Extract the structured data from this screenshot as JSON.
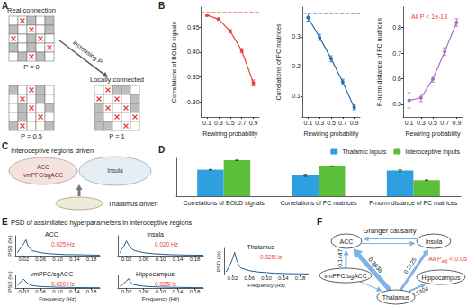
{
  "panel_labels": [
    "A",
    "B",
    "C",
    "D",
    "E",
    "F"
  ],
  "diagram_A": {
    "grids": [
      {
        "title": "Real connection",
        "caption": "P = 0",
        "gray": [
          2,
          4,
          5,
          9,
          12,
          15,
          17,
          21,
          23
        ],
        "marked": [
          1,
          7,
          10,
          13,
          19,
          22
        ]
      },
      {
        "caption": "P = 0.5",
        "gray": [
          0,
          3,
          8,
          11,
          14,
          16,
          20,
          24
        ],
        "marked": [
          2,
          6,
          12,
          18,
          21
        ]
      },
      {
        "title": "Locally connected",
        "caption": "P = 1",
        "gray": [
          2,
          3,
          9,
          10,
          14,
          15,
          20,
          21
        ],
        "marked": [
          1,
          5,
          7,
          11,
          13,
          17,
          19,
          23
        ]
      }
    ],
    "arrow_label": "increasing P"
  },
  "diagram_C": {
    "top_label": "Interoceptive regions driven",
    "regions_left": [
      "ACC",
      "vmPFC/sgACC"
    ],
    "regions_right": [
      "Insula"
    ],
    "bottom_label": "Thalamus driven"
  },
  "panel_E_title": "PSD of assimilated hyperparameters in interoceptive regions",
  "diagram_F": {
    "title": "Granger causality",
    "note": {
      "text": "All P",
      "subscript": "adj",
      "rest": " < 0.05",
      "color": "#e8413a"
    },
    "nodes": [
      "ACC",
      "Insula",
      "vmPFC/sgACC",
      "Hippocampus",
      "Thalamus"
    ],
    "edges": [
      {
        "from": "ACC",
        "to": "Insula"
      },
      {
        "from": "Insula",
        "to": "ACC"
      },
      {
        "from": "vmPFC/sgACC",
        "to": "ACC",
        "weight": 0.1447
      },
      {
        "from": "Thalamus",
        "to": "ACC",
        "weight": 0.3638
      },
      {
        "from": "Thalamus",
        "to": "Insula",
        "weight": 0.2125
      },
      {
        "from": "Thalamus",
        "to": "Hippocampus",
        "weight": 0.1304
      },
      {
        "from": "vmPFC/sgACC",
        "to": "Thalamus"
      }
    ]
  },
  "chart_data": [
    {
      "type": "line",
      "x_label": "Rewiring probability",
      "y_label": "Correlations of BOLD signals",
      "x": [
        0.1,
        0.3,
        0.5,
        0.7,
        0.9
      ],
      "xlim": [
        0,
        1
      ],
      "xticks": [
        0.1,
        0.3,
        0.5,
        0.7,
        0.9
      ],
      "ylim": [
        0.27,
        0.49
      ],
      "yticks": [
        {
          "value": 0.3,
          "label": "0.30"
        },
        0.35,
        {
          "value": 0.4,
          "label": "0.40"
        },
        0.45
      ],
      "grid": false,
      "series": [
        {
          "values": [
            0.474,
            0.466,
            0.442,
            0.403,
            0.338
          ],
          "errors": [
            0.002,
            0.002,
            0.003,
            0.004,
            0.006
          ],
          "color": "#e8413a",
          "marker": "circle"
        }
      ],
      "reference": {
        "value": 0.48,
        "color": "#f28b82",
        "line_style": "dashed"
      }
    },
    {
      "type": "line",
      "x_label": "Rewiring probability",
      "y_label": "Correlations of FC matrices",
      "x": [
        0.1,
        0.3,
        0.5,
        0.7,
        0.9
      ],
      "xlim": [
        0,
        1
      ],
      "xticks": [
        0.1,
        0.3,
        0.5,
        0.7,
        0.9
      ],
      "ylim": [
        0.03,
        0.4
      ],
      "yticks": [
        0.1,
        0.2,
        0.3
      ],
      "grid": false,
      "series": [
        {
          "values": [
            0.365,
            0.298,
            0.226,
            0.148,
            0.062
          ],
          "errors": [
            0.012,
            0.01,
            0.01,
            0.009,
            0.008
          ],
          "color": "#2b6cb0",
          "marker": "circle"
        }
      ],
      "reference": {
        "value": 0.38,
        "color": "#8fb3de",
        "line_style": "dashed"
      }
    },
    {
      "type": "line",
      "x_label": "Rewiring probability",
      "y_label": "F-norm distance of FC matrices",
      "x": [
        0.1,
        0.3,
        0.5,
        0.7,
        0.9
      ],
      "xlim": [
        0,
        1
      ],
      "xticks": [
        0.1,
        0.3,
        0.5,
        0.7,
        0.9
      ],
      "ylim": [
        0.45,
        0.88
      ],
      "yticks": [
        0.5,
        0.6,
        0.7,
        0.8
      ],
      "grid": false,
      "series": [
        {
          "values": [
            0.515,
            0.525,
            0.598,
            0.706,
            0.82
          ],
          "errors": [
            0.03,
            0.015,
            0.012,
            0.015,
            0.015
          ],
          "color": "#a56cc1",
          "marker": "circle"
        }
      ],
      "reference": {
        "value": 0.47,
        "color": "#c8a8dc",
        "line_style": "dashed"
      },
      "annotation": {
        "text": "All P < 1e-13",
        "color": "#e8413a"
      }
    },
    {
      "type": "bar",
      "categories": [
        "Correlations of BOLD signals",
        "Correlations of FC matrices",
        "F-norm distance of FC matrices"
      ],
      "ylim": [
        0,
        0.7
      ],
      "tick_labels": "x",
      "grid": false,
      "legend": "top-right",
      "series": [
        {
          "name": "Thalamic inputs",
          "color": "#2e9fdf",
          "values": [
            0.49,
            0.385,
            0.475
          ],
          "errors": [
            0.005,
            0.02,
            0.015
          ]
        },
        {
          "name": "Interoceptive inputs",
          "color": "#5cbf3a",
          "values": [
            0.665,
            0.555,
            0.295
          ],
          "errors": [
            0.005,
            0.006,
            0.006
          ]
        }
      ]
    },
    {
      "type": "line",
      "title": "ACC",
      "annotation": {
        "text": "0.025 Hz",
        "color": "#e8413a"
      },
      "y_label": "PSD (%)",
      "x": [
        0.005,
        0.01,
        0.015,
        0.02,
        0.025,
        0.03,
        0.035,
        0.04,
        0.05,
        0.06,
        0.07,
        0.08,
        0.1,
        0.12,
        0.14,
        0.16,
        0.18,
        0.2
      ],
      "xlim": [
        0,
        0.2
      ],
      "xticks": [
        0.02,
        0.06,
        {
          "value": 0.1,
          "label": "0.10"
        },
        0.14,
        0.18
      ],
      "ylim": [
        0,
        20
      ],
      "tick_labels": "x",
      "grid": false,
      "series": [
        {
          "values": [
            3,
            6,
            9,
            12,
            16,
            10,
            7,
            5,
            4,
            3,
            2.5,
            2,
            1.5,
            1,
            1,
            0.8,
            0.6,
            0.5
          ],
          "color": "#1f5d8a"
        }
      ]
    },
    {
      "type": "line",
      "title": "Insula",
      "annotation": {
        "text": "0.020 Hz",
        "color": "#e8413a"
      },
      "x": [
        0.005,
        0.01,
        0.015,
        0.02,
        0.025,
        0.03,
        0.035,
        0.04,
        0.05,
        0.06,
        0.07,
        0.08,
        0.1,
        0.12,
        0.14,
        0.16,
        0.18,
        0.2
      ],
      "xlim": [
        0,
        0.2
      ],
      "xticks": [
        0.02,
        0.06,
        {
          "value": 0.1,
          "label": "0.10"
        },
        0.14,
        0.18
      ],
      "ylim": [
        0,
        20
      ],
      "tick_labels": "x",
      "grid": false,
      "series": [
        {
          "values": [
            3,
            7,
            10,
            15,
            11,
            8,
            6,
            5,
            4,
            3,
            2.5,
            2,
            1.5,
            1,
            0.8,
            0.6,
            0.5,
            0.4
          ],
          "color": "#1f5d8a"
        }
      ]
    },
    {
      "type": "line",
      "title": "vmPFC/sgACC",
      "annotation": {
        "text": "0.020 Hz",
        "color": "#e8413a"
      },
      "y_label": "PSD (%)",
      "x_label": "Frequency (Hz)",
      "x": [
        0.005,
        0.01,
        0.015,
        0.02,
        0.025,
        0.03,
        0.035,
        0.04,
        0.05,
        0.06,
        0.07,
        0.08,
        0.1,
        0.12,
        0.14,
        0.16,
        0.18,
        0.2
      ],
      "xlim": [
        0,
        0.2
      ],
      "xticks": [
        0.02,
        0.06,
        {
          "value": 0.1,
          "label": "0.10"
        },
        0.14,
        0.18
      ],
      "ylim": [
        0,
        20
      ],
      "tick_labels": "x",
      "grid": false,
      "series": [
        {
          "values": [
            4,
            8,
            11,
            14,
            10,
            7,
            5,
            4,
            3,
            2.5,
            2,
            1.8,
            1.2,
            1,
            0.8,
            0.6,
            0.5,
            0.4
          ],
          "color": "#1f5d8a"
        }
      ]
    },
    {
      "type": "line",
      "title": "Hippocampus",
      "annotation": {
        "text": "0.025Hz",
        "color": "#e8413a"
      },
      "x_label": "Frequency (Hz)",
      "x": [
        0.005,
        0.01,
        0.015,
        0.02,
        0.025,
        0.03,
        0.035,
        0.04,
        0.05,
        0.06,
        0.07,
        0.08,
        0.1,
        0.12,
        0.14,
        0.16,
        0.18,
        0.2
      ],
      "xlim": [
        0,
        0.2
      ],
      "xticks": [
        0.02,
        0.06,
        {
          "value": 0.1,
          "label": "0.10"
        },
        0.14,
        0.18
      ],
      "ylim": [
        0,
        20
      ],
      "tick_labels": "x",
      "grid": false,
      "series": [
        {
          "values": [
            3,
            5,
            8,
            11,
            15,
            9,
            6,
            5,
            4,
            3,
            2.5,
            2,
            1.5,
            1.2,
            1,
            0.8,
            0.6,
            0.5
          ],
          "color": "#1f5d8a"
        }
      ]
    },
    {
      "type": "line",
      "title": "Thalamus",
      "annotation": {
        "text": "0.025Hz",
        "color": "#e8413a"
      },
      "y_label": "PSD (%)",
      "x_label": "Frequency (Hz)",
      "x": [
        0.005,
        0.01,
        0.015,
        0.02,
        0.025,
        0.03,
        0.035,
        0.04,
        0.05,
        0.06,
        0.07,
        0.08,
        0.1,
        0.12,
        0.14,
        0.16,
        0.18,
        0.2
      ],
      "xlim": [
        0,
        0.2
      ],
      "xticks": [
        0.02,
        0.06,
        {
          "value": 0.1,
          "label": "0.10"
        },
        0.14,
        0.18
      ],
      "ylim": [
        0,
        20
      ],
      "tick_labels": "x",
      "grid": false,
      "series": [
        {
          "values": [
            2,
            5,
            8,
            12,
            17,
            11,
            7,
            5,
            4,
            3,
            2.5,
            2,
            1.5,
            1,
            0.8,
            0.7,
            0.6,
            0.5
          ],
          "color": "#1f5d8a"
        }
      ]
    }
  ]
}
